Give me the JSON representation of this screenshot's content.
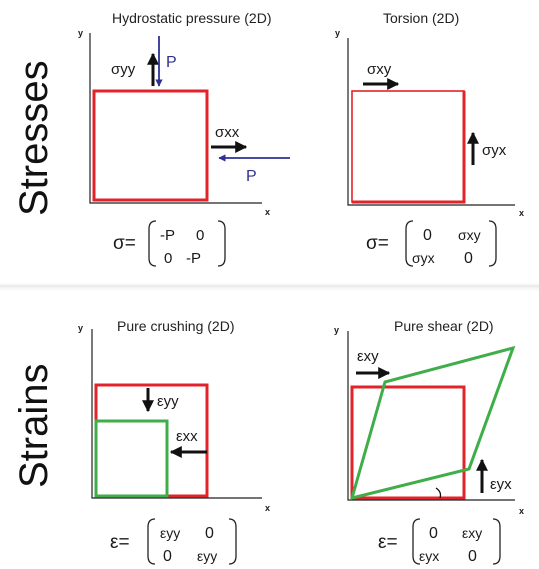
{
  "rows": {
    "stresses_label": "Stresses",
    "strains_label": "Strains"
  },
  "panels": {
    "hydrostatic": {
      "title": "Hydrostatic pressure (2D)",
      "y_axis": "y",
      "x_axis": "x",
      "sigma_yy": "σyy",
      "sigma_xx": "σxx",
      "P_top": "P",
      "P_right": "P",
      "matrix_lhs": "σ=",
      "m11": "-P",
      "m12": "0",
      "m21": "0",
      "m22": "-P"
    },
    "torsion": {
      "title": "Torsion (2D)",
      "y_axis": "y",
      "x_axis": "x",
      "sigma_xy": "σxy",
      "sigma_yx": "σyx",
      "matrix_lhs": "σ=",
      "m11": "0",
      "m12": "σxy",
      "m21": "σyx",
      "m22": "0"
    },
    "crushing": {
      "title": "Pure crushing (2D)",
      "y_axis": "y",
      "x_axis": "x",
      "eps_yy": "εyy",
      "eps_xx": "εxx",
      "matrix_lhs": "ε=",
      "m11": "εyy",
      "m12": "0",
      "m21": "0",
      "m22": "εyy"
    },
    "shear": {
      "title": "Pure shear (2D)",
      "y_axis": "y",
      "x_axis": "x",
      "eps_xy": "εxy",
      "eps_yx": "εyx",
      "matrix_lhs": "ε=",
      "m11": "0",
      "m12": "εxy",
      "m21": "εyx",
      "m22": "0"
    }
  },
  "colors": {
    "square": "#e2232a",
    "deformed": "#3fae49",
    "pressure": "#2e3192",
    "arrow": "#111111"
  }
}
